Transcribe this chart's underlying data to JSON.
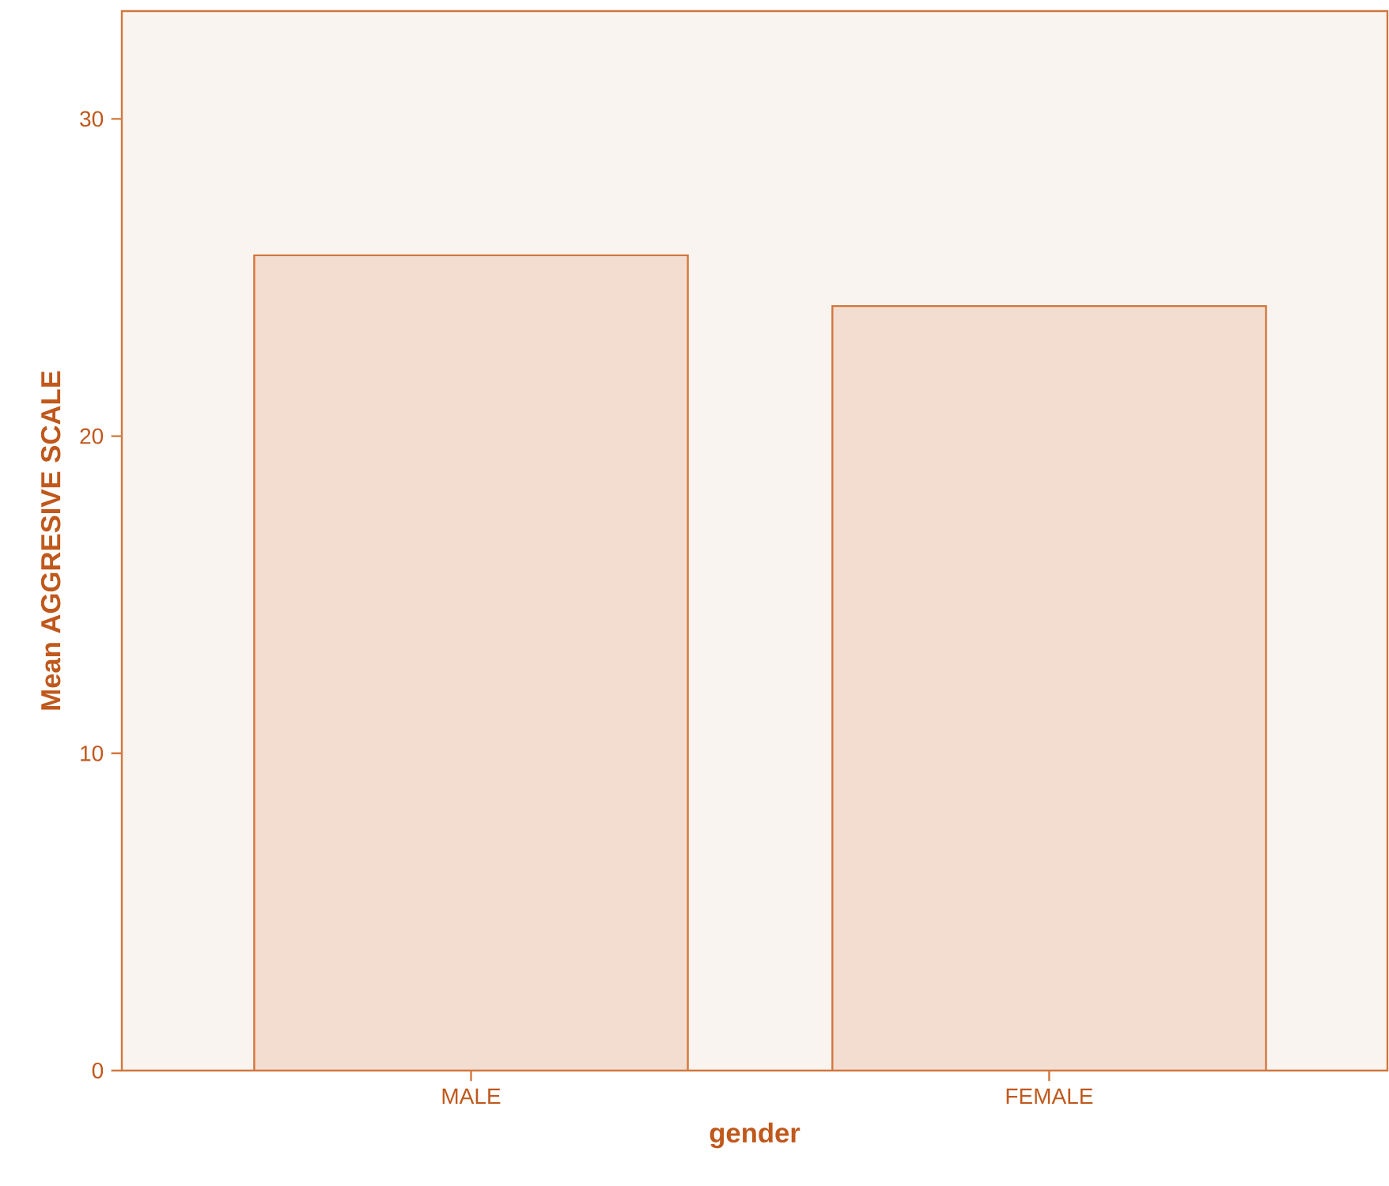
{
  "chart_data": {
    "type": "bar",
    "xlabel": "gender",
    "ylabel": "Mean AGGRESIVE SCALE",
    "categories": [
      "MALE",
      "FEMALE"
    ],
    "values": [
      25.7,
      24.1
    ],
    "color": "#f2ddd0",
    "ylim": [
      0,
      33.4
    ],
    "yticks": [
      0,
      10,
      20,
      30
    ],
    "grid": false
  }
}
